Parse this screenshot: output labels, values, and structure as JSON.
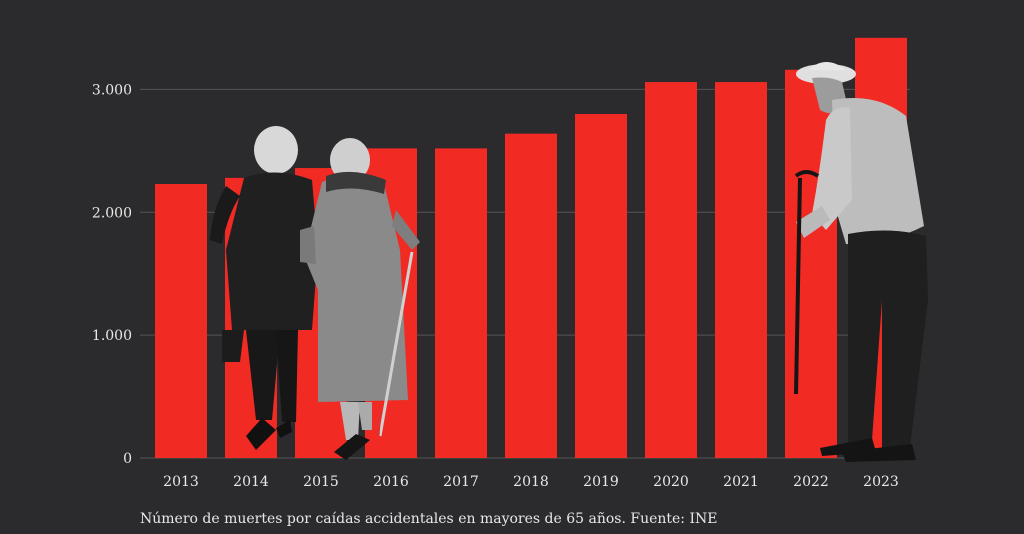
{
  "caption": "Número de muertes por caídas accidentales en mayores de 65 años. Fuente: INE",
  "colors": {
    "background": "#2b2b2d",
    "bar": "#f22a24",
    "text": "#e8e8e8",
    "grid": "#555557",
    "figure_light": "#9a9a9a",
    "figure_dark": "#1b1b1b"
  },
  "illustrations": [
    "elderly-women-walking-photo",
    "elderly-man-with-cane-photo"
  ],
  "chart_data": {
    "type": "bar",
    "categories": [
      "2013",
      "2014",
      "2015",
      "2016",
      "2017",
      "2018",
      "2019",
      "2020",
      "2021",
      "2022",
      "2023"
    ],
    "values": [
      2230,
      2280,
      2360,
      2520,
      2520,
      2640,
      2800,
      3060,
      3060,
      3160,
      3420
    ],
    "ylim": [
      0,
      3500
    ],
    "yticks": [
      0,
      1000,
      2000,
      3000
    ],
    "ytick_labels": [
      "0",
      "1.000",
      "2.000",
      "3.000"
    ],
    "grid": true,
    "legend": "none"
  }
}
